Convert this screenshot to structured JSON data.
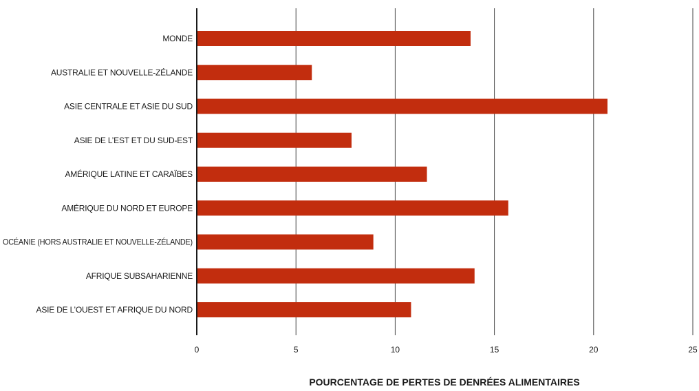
{
  "chart_data": {
    "type": "bar",
    "orientation": "horizontal",
    "categories": [
      "MONDE",
      "AUSTRALIE ET NOUVELLE-ZÉLANDE",
      "ASIE CENTRALE ET ASIE DU SUD",
      "ASIE DE L’EST ET DU SUD-EST",
      "AMÉRIQUE LATINE ET CARAÏBES",
      "AMÉRIQUE DU NORD ET EUROPE",
      "OCÉANIE (HORS AUSTRALIE ET NOUVELLE-ZÉLANDE)",
      "AFRIQUE SUBSAHARIENNE",
      "ASIE DE L’OUEST ET AFRIQUE DU NORD"
    ],
    "values": [
      13.8,
      5.8,
      20.7,
      7.8,
      11.6,
      15.7,
      8.9,
      14.0,
      10.8
    ],
    "xlabel": "POURCENTAGE DE PERTES DE DENRÉES ALIMENTAIRES",
    "ylabel": "",
    "xlim": [
      0,
      25
    ],
    "xticks": [
      0,
      5,
      10,
      15,
      20,
      25
    ],
    "grid": true,
    "bar_color": "#c22d0e",
    "axis_color": "#1a1a1a",
    "grid_color": "#444444"
  }
}
